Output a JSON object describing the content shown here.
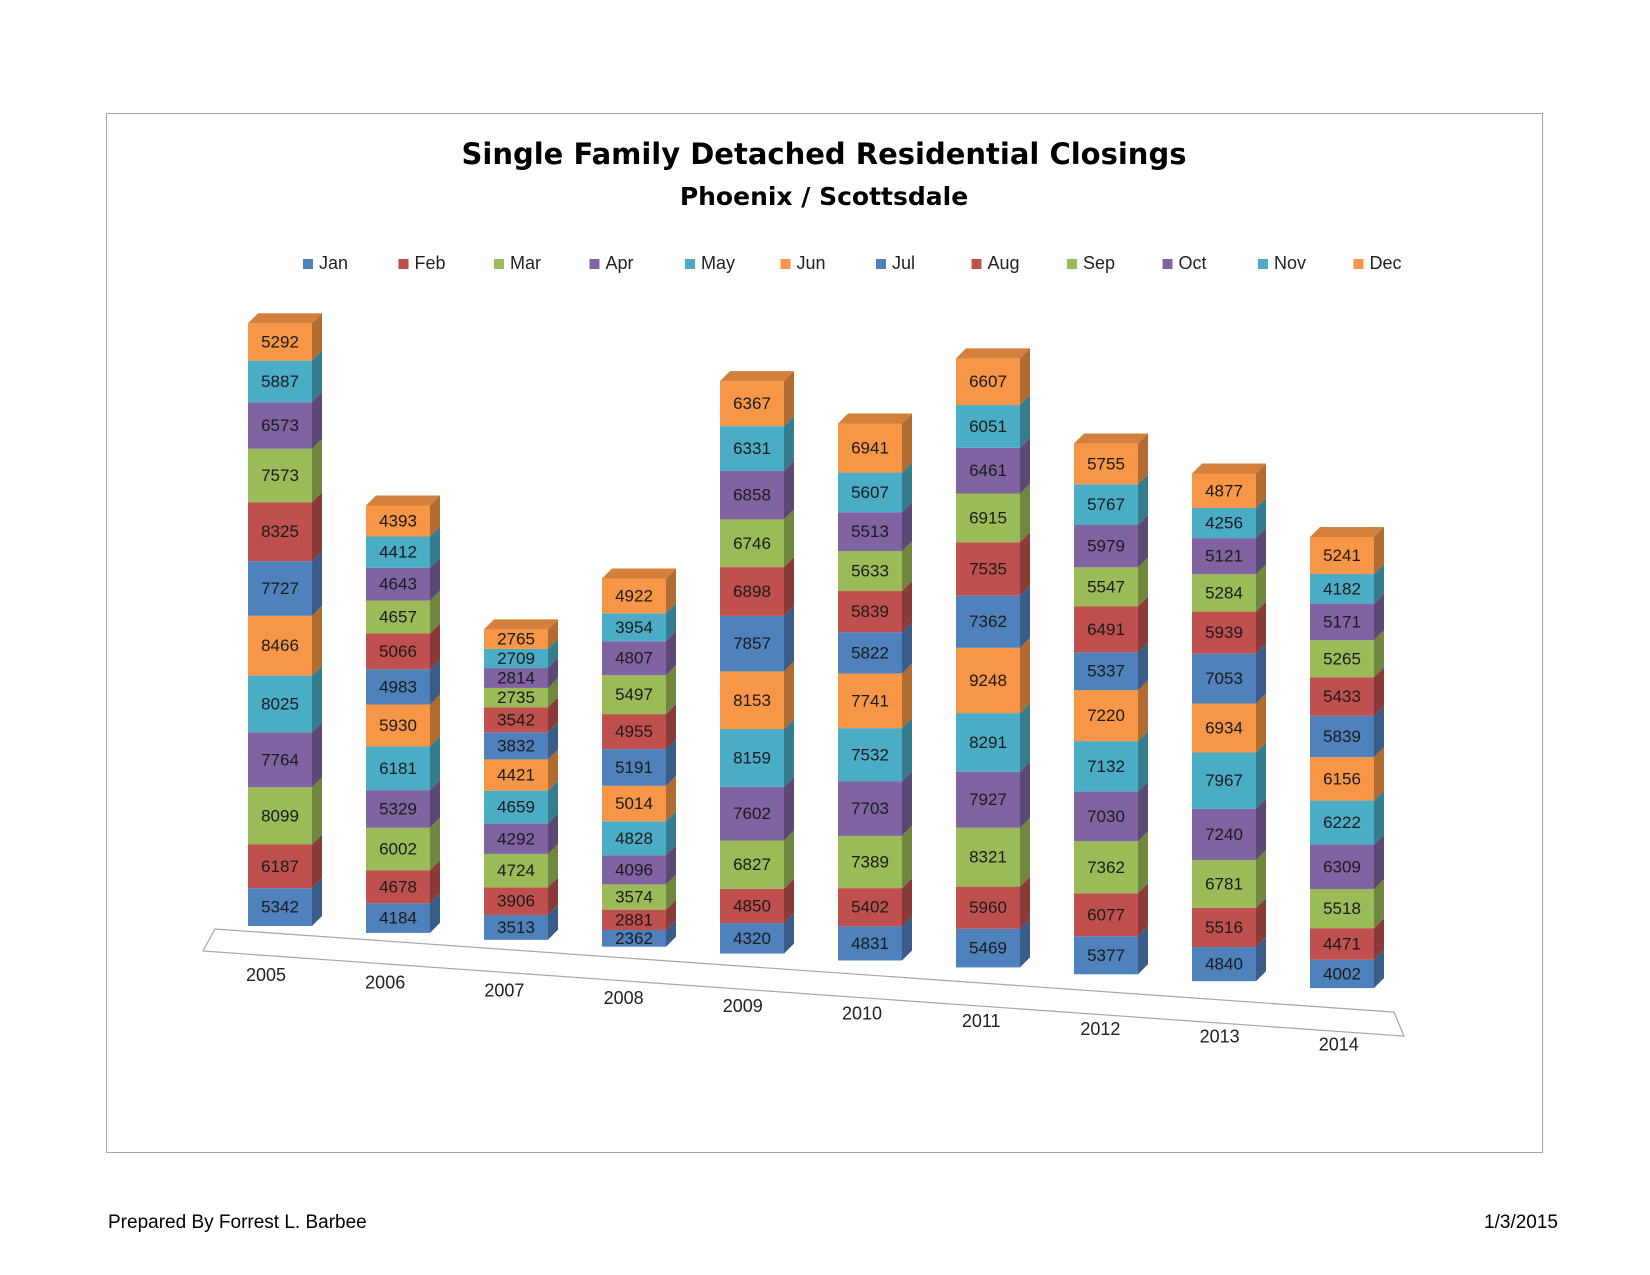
{
  "footer": {
    "prepared_by": "Prepared By Forrest L. Barbee",
    "date": "1/3/2015"
  },
  "chart_data": {
    "type": "bar",
    "stacked": true,
    "three_d": true,
    "title": "Single Family Detached Residential Closings",
    "subtitle": "Phoenix / Scottsdale",
    "xlabel": "",
    "ylabel": "",
    "legend_position": "top",
    "categories": [
      "2005",
      "2006",
      "2007",
      "2008",
      "2009",
      "2010",
      "2011",
      "2012",
      "2013",
      "2014"
    ],
    "series": [
      {
        "name": "Jan",
        "color": "#4f81bd",
        "values": [
          5342,
          4184,
          3513,
          2362,
          4320,
          4831,
          5469,
          5377,
          4840,
          4002
        ]
      },
      {
        "name": "Feb",
        "color": "#c0504d",
        "values": [
          6187,
          4678,
          3906,
          2881,
          4850,
          5402,
          5960,
          6077,
          5516,
          4471
        ]
      },
      {
        "name": "Mar",
        "color": "#9bbb59",
        "values": [
          8099,
          6002,
          4724,
          3574,
          6827,
          7389,
          8321,
          7362,
          6781,
          5518
        ]
      },
      {
        "name": "Apr",
        "color": "#8064a2",
        "values": [
          7764,
          5329,
          4292,
          4096,
          7602,
          7703,
          7927,
          7030,
          7240,
          6309
        ]
      },
      {
        "name": "May",
        "color": "#4bacc6",
        "values": [
          8025,
          6181,
          4659,
          4828,
          8159,
          7532,
          8291,
          7132,
          7967,
          6222
        ]
      },
      {
        "name": "Jun",
        "color": "#f79646",
        "values": [
          8466,
          5930,
          4421,
          5014,
          8153,
          7741,
          9248,
          7220,
          6934,
          6156
        ]
      },
      {
        "name": "Jul",
        "color": "#4f81bd",
        "values": [
          7727,
          4983,
          3832,
          5191,
          7857,
          5822,
          7362,
          5337,
          7053,
          5839
        ]
      },
      {
        "name": "Aug",
        "color": "#c0504d",
        "values": [
          8325,
          5066,
          3542,
          4955,
          6898,
          5839,
          7535,
          6491,
          5939,
          5433
        ]
      },
      {
        "name": "Sep",
        "color": "#9bbb59",
        "values": [
          7573,
          4657,
          2735,
          5497,
          6746,
          5633,
          6915,
          5547,
          5284,
          5265
        ]
      },
      {
        "name": "Oct",
        "color": "#8064a2",
        "values": [
          6573,
          4643,
          2814,
          4807,
          6858,
          5513,
          6461,
          5979,
          5121,
          5171
        ]
      },
      {
        "name": "Nov",
        "color": "#4bacc6",
        "values": [
          5887,
          4412,
          2709,
          3954,
          6331,
          5607,
          6051,
          5767,
          4256,
          4182
        ]
      },
      {
        "name": "Dec",
        "color": "#f79646",
        "values": [
          5292,
          4393,
          2765,
          4922,
          6367,
          6941,
          6607,
          5755,
          4877,
          5241
        ]
      }
    ]
  }
}
